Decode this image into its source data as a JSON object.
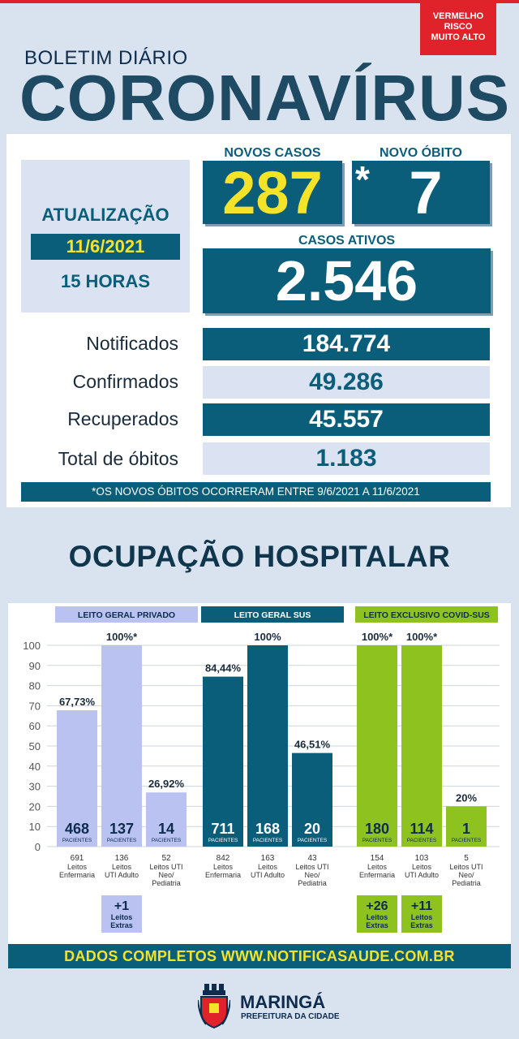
{
  "risk_badge": {
    "line1": "VERMELHO",
    "line2": "RISCO",
    "line3": "MUITO ALTO",
    "color": "#e0222a"
  },
  "header": {
    "bulletin": "BOLETIM DIÁRIO",
    "title": "CORONAVÍRUS"
  },
  "update": {
    "label": "ATUALIZAÇÃO",
    "date": "11/6/2021",
    "hour": "15 HORAS"
  },
  "headline": {
    "new_cases_label": "NOVOS CASOS",
    "new_cases": "287",
    "new_death_label": "NOVO ÓBITO",
    "new_death_mark": "*",
    "new_death": "7",
    "active_label": "CASOS ATIVOS",
    "active": "2.546"
  },
  "stats": [
    {
      "label": "Notificados",
      "value": "184.774"
    },
    {
      "label": "Confirmados",
      "value": "49.286"
    },
    {
      "label": "Recuperados",
      "value": "45.557"
    },
    {
      "label": "Total de óbitos",
      "value": "1.183"
    }
  ],
  "footnote": "*OS NOVOS ÓBITOS OCORRERAM ENTRE 9/6/2021 A 11/6/2021",
  "hospital_title": "OCUPAÇÃO HOSPITALAR",
  "chart_data": {
    "type": "bar",
    "ylim": [
      0,
      100
    ],
    "yticks": [
      0,
      10,
      20,
      30,
      40,
      50,
      60,
      70,
      80,
      90,
      100
    ],
    "grid": true,
    "unit_label": "PACIENTES",
    "extra_label_1": "Leitos",
    "extra_label_2": "Extras",
    "groups": [
      {
        "name": "LEITO GERAL PRIVADO",
        "color": "#b9c2f0",
        "header_color": "#b9c2f0",
        "header_text_color": "#0d2c4e",
        "value_text_color": "#0d2c4e",
        "bars": [
          {
            "percent": 67.73,
            "percent_label": "67,73%",
            "patients": "468",
            "beds": "691",
            "desc": [
              "Leitos",
              "Enfermaria"
            ]
          },
          {
            "percent": 100,
            "percent_label": "100%*",
            "patients": "137",
            "beds": "136",
            "desc": [
              "Leitos",
              "UTI Adulto"
            ]
          },
          {
            "percent": 26.92,
            "percent_label": "26,92%",
            "patients": "14",
            "beds": "52",
            "desc": [
              "Leitos UTI",
              "Neo/",
              "Pediatria"
            ]
          }
        ],
        "extras": [
          {
            "bar_index": 1,
            "value": "+1"
          }
        ]
      },
      {
        "name": "LEITO GERAL SUS",
        "color": "#0b5e7a",
        "header_color": "#0b5e7a",
        "header_text_color": "#ffffff",
        "value_text_color": "#ffffff",
        "bars": [
          {
            "percent": 84.44,
            "percent_label": "84,44%",
            "patients": "711",
            "beds": "842",
            "desc": [
              "Leitos",
              "Enfermaria"
            ]
          },
          {
            "percent": 100,
            "percent_label": "100%",
            "patients": "168",
            "beds": "163",
            "desc": [
              "Leitos",
              "UTI Adulto"
            ]
          },
          {
            "percent": 46.51,
            "percent_label": "46,51%",
            "patients": "20",
            "beds": "43",
            "desc": [
              "Leitos UTI",
              "Neo/",
              "Pediatria"
            ]
          }
        ],
        "extras": []
      },
      {
        "name": "LEITO EXCLUSIVO COVID-SUS",
        "color": "#8ec21f",
        "header_color": "#8ec21f",
        "header_text_color": "#0d2c4e",
        "value_text_color": "#0d2c4e",
        "bars": [
          {
            "percent": 100,
            "percent_label": "100%*",
            "patients": "180",
            "beds": "154",
            "desc": [
              "Leitos",
              "Enfermaria"
            ]
          },
          {
            "percent": 100,
            "percent_label": "100%*",
            "patients": "114",
            "beds": "103",
            "desc": [
              "Leitos",
              "UTI Adulto"
            ]
          },
          {
            "percent": 20,
            "percent_label": "20%",
            "patients": "1",
            "beds": "5",
            "desc": [
              "Leitos UTI",
              "Neo/",
              "Pediatria"
            ]
          }
        ],
        "extras": [
          {
            "bar_index": 0,
            "value": "+26"
          },
          {
            "bar_index": 1,
            "value": "+11"
          }
        ]
      }
    ]
  },
  "footer": {
    "site": "DADOS COMPLETOS  WWW.NOTIFICASAUDE.COM.BR",
    "city": "MARINGÁ",
    "city_sub": "PREFEITURA DA CIDADE",
    "crest_icon": "city-crest-icon"
  }
}
